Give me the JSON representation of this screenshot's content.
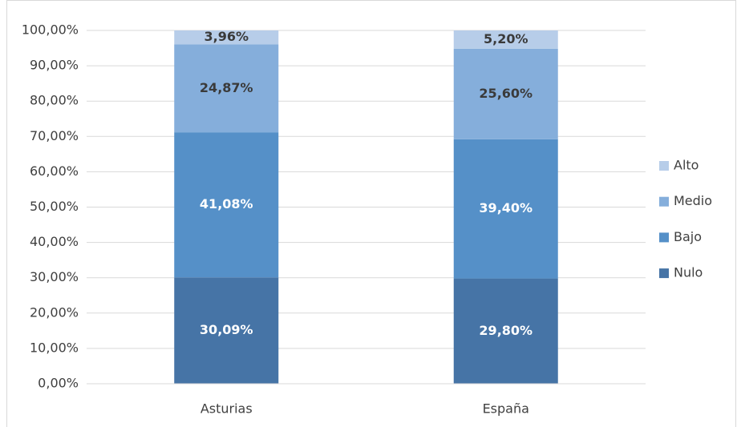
{
  "chart_data": {
    "type": "stacked_bar",
    "categories": [
      "Asturias",
      "España"
    ],
    "series": [
      {
        "name": "Nulo",
        "color": "#4674a6",
        "label_color": "#ffffff",
        "values": [
          30.09,
          29.8
        ],
        "value_labels": [
          "30,09%",
          "29,80%"
        ]
      },
      {
        "name": "Bajo",
        "color": "#5590c8",
        "label_color": "#ffffff",
        "values": [
          41.08,
          39.4
        ],
        "value_labels": [
          "41,08%",
          "39,40%"
        ]
      },
      {
        "name": "Medio",
        "color": "#85aedb",
        "label_color": "#3a3a3a",
        "values": [
          24.87,
          25.6
        ],
        "value_labels": [
          "24,87%",
          "25,60%"
        ]
      },
      {
        "name": "Alto",
        "color": "#b7cde9",
        "label_color": "#3a3a3a",
        "values": [
          3.96,
          5.2
        ],
        "value_labels": [
          "3,96%",
          "5,20%"
        ]
      }
    ],
    "ylim": [
      0,
      100
    ],
    "yticks": [
      {
        "value": 0,
        "label": "0,00%"
      },
      {
        "value": 10,
        "label": "10,00%"
      },
      {
        "value": 20,
        "label": "20,00%"
      },
      {
        "value": 30,
        "label": "30,00%"
      },
      {
        "value": 40,
        "label": "40,00%"
      },
      {
        "value": 50,
        "label": "50,00%"
      },
      {
        "value": 60,
        "label": "60,00%"
      },
      {
        "value": 70,
        "label": "70,00%"
      },
      {
        "value": 80,
        "label": "80,00%"
      },
      {
        "value": 90,
        "label": "90,00%"
      },
      {
        "value": 100,
        "label": "100,00%"
      }
    ],
    "grid": true,
    "legend": "right"
  }
}
